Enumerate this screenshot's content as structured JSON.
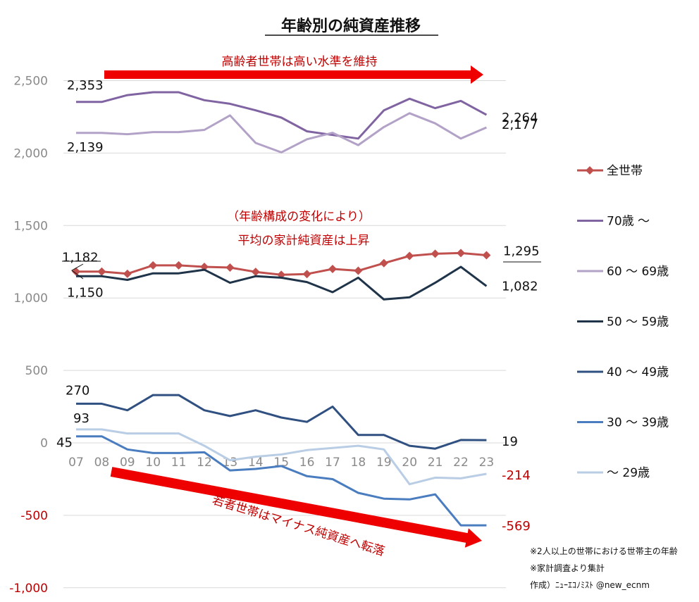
{
  "chart_data": {
    "type": "line",
    "title": "年齢別の純資産推移",
    "categories": [
      "07",
      "08",
      "09",
      "10",
      "11",
      "12",
      "13",
      "14",
      "15",
      "16",
      "17",
      "18",
      "19",
      "20",
      "21",
      "22",
      "23"
    ],
    "ylim": [
      -1000,
      2500
    ],
    "yticks": [
      "2,500",
      "2,000",
      "1,500",
      "1,000",
      "500",
      "0",
      "-500",
      "-1,000"
    ],
    "ytick_values": [
      2500,
      2000,
      1500,
      1000,
      500,
      0,
      -500,
      -1000
    ],
    "grid": true,
    "legend_position": "right",
    "series": [
      {
        "name": "全世帯",
        "color": "#c0504d",
        "marker": "diamond",
        "values": [
          1182,
          1182,
          1167,
          1225,
          1225,
          1215,
          1210,
          1180,
          1160,
          1165,
          1200,
          1188,
          1240,
          1290,
          1305,
          1310,
          1295
        ]
      },
      {
        "name": "70歳 ～",
        "color": "#8064a2",
        "values": [
          2353,
          2353,
          2400,
          2420,
          2420,
          2365,
          2340,
          2295,
          2245,
          2150,
          2125,
          2100,
          2295,
          2375,
          2310,
          2360,
          2264
        ]
      },
      {
        "name": "60 ～ 69歳",
        "color": "#b3a2c7",
        "values": [
          2139,
          2139,
          2130,
          2145,
          2145,
          2160,
          2260,
          2070,
          2005,
          2095,
          2140,
          2055,
          2180,
          2275,
          2205,
          2100,
          2177
        ]
      },
      {
        "name": "50 ～ 59歳",
        "color": "#1f3349",
        "values": [
          1150,
          1150,
          1125,
          1170,
          1170,
          1195,
          1105,
          1150,
          1140,
          1110,
          1040,
          1140,
          990,
          1005,
          1105,
          1215,
          1082
        ]
      },
      {
        "name": "40 ～ 49歳",
        "color": "#2f5080",
        "values": [
          270,
          270,
          225,
          330,
          330,
          225,
          185,
          225,
          175,
          145,
          250,
          55,
          55,
          -20,
          -40,
          20,
          19
        ]
      },
      {
        "name": "30 ～ 39歳",
        "color": "#4a7dbf",
        "values": [
          45,
          45,
          -45,
          -70,
          -70,
          -65,
          -190,
          -180,
          -160,
          -230,
          -250,
          -345,
          -385,
          -390,
          -355,
          -569,
          -569
        ]
      },
      {
        "name": "～ 29歳",
        "color": "#b9cde5",
        "values": [
          93,
          93,
          65,
          65,
          65,
          -20,
          -120,
          -95,
          -80,
          -50,
          -35,
          -20,
          -45,
          -285,
          -240,
          -245,
          -214
        ]
      }
    ],
    "annotations": {
      "arrow_top": "高齢者世帯は高い水準を維持",
      "middle_line1": "（年齢構成の変化により）",
      "middle_line2": "平均の家計純資産は上昇",
      "arrow_bottom": "若者世帯はマイナス純資産へ転落"
    },
    "data_labels": [
      {
        "text": "2,353",
        "series": "70歳 ～",
        "index": 0
      },
      {
        "text": "2,139",
        "series": "60 ～ 69歳",
        "index": 0
      },
      {
        "text": "2,264",
        "series": "70歳 ～",
        "index": 16
      },
      {
        "text": "2,177",
        "series": "60 ～ 69歳",
        "index": 16
      },
      {
        "text": "1,182",
        "series": "全世帯",
        "index": 0
      },
      {
        "text": "1,150",
        "series": "50 ～ 59歳",
        "index": 0
      },
      {
        "text": "1,295",
        "series": "全世帯",
        "index": 16
      },
      {
        "text": "1,082",
        "series": "50 ～ 59歳",
        "index": 16
      },
      {
        "text": "270",
        "series": "40 ～ 49歳",
        "index": 0
      },
      {
        "text": "93",
        "series": "～ 29歳",
        "index": 0
      },
      {
        "text": "45",
        "series": "30 ～ 39歳",
        "index": 0
      },
      {
        "text": "19",
        "series": "40 ～ 49歳",
        "index": 16
      },
      {
        "text": "-214",
        "series": "～ 29歳",
        "index": 16
      },
      {
        "text": "-569",
        "series": "30 ～ 39歳",
        "index": 16
      }
    ],
    "footnotes": [
      "※2人以上の世帯における世帯主の年齢",
      "※家計調査より集計",
      "作成）ﾆｭｰｴｺﾉﾐｽﾄ @new_ecnm"
    ]
  }
}
